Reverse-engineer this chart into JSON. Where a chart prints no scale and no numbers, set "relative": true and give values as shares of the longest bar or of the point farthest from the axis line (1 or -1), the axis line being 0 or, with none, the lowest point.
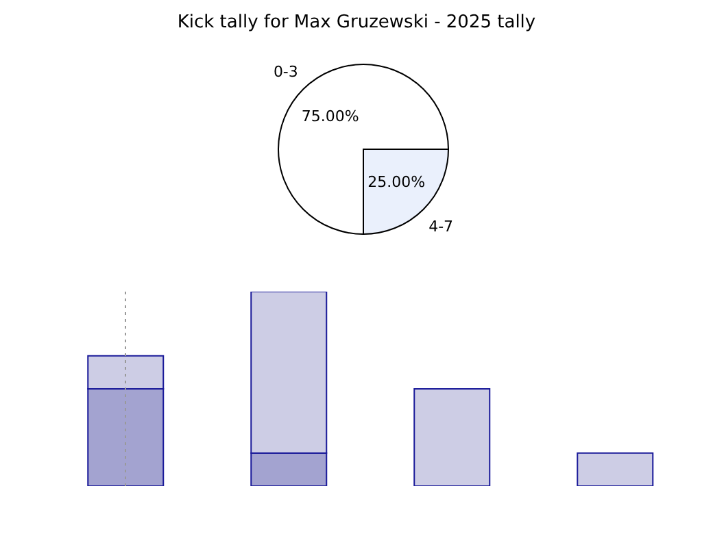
{
  "chart_data": [
    {
      "type": "pie",
      "title": "Kick tally for Max Gruzewski - 2025 tally",
      "categories": [
        "0-3",
        "4-7"
      ],
      "values": [
        75,
        25
      ],
      "colors": [
        "#ffffff",
        "#eaf0fc"
      ],
      "value_labels": [
        "75.00%",
        "25.00%"
      ]
    },
    {
      "type": "bar",
      "relative": true,
      "stacked": true,
      "categories": [
        null,
        null,
        null,
        null
      ],
      "series": [
        {
          "color": "#a3a3d0",
          "values": [
            0.5,
            0.17,
            null,
            null
          ]
        },
        {
          "color": "#cdcde5",
          "values": [
            0.17,
            0.83,
            0.5,
            0.17
          ]
        }
      ]
    }
  ]
}
